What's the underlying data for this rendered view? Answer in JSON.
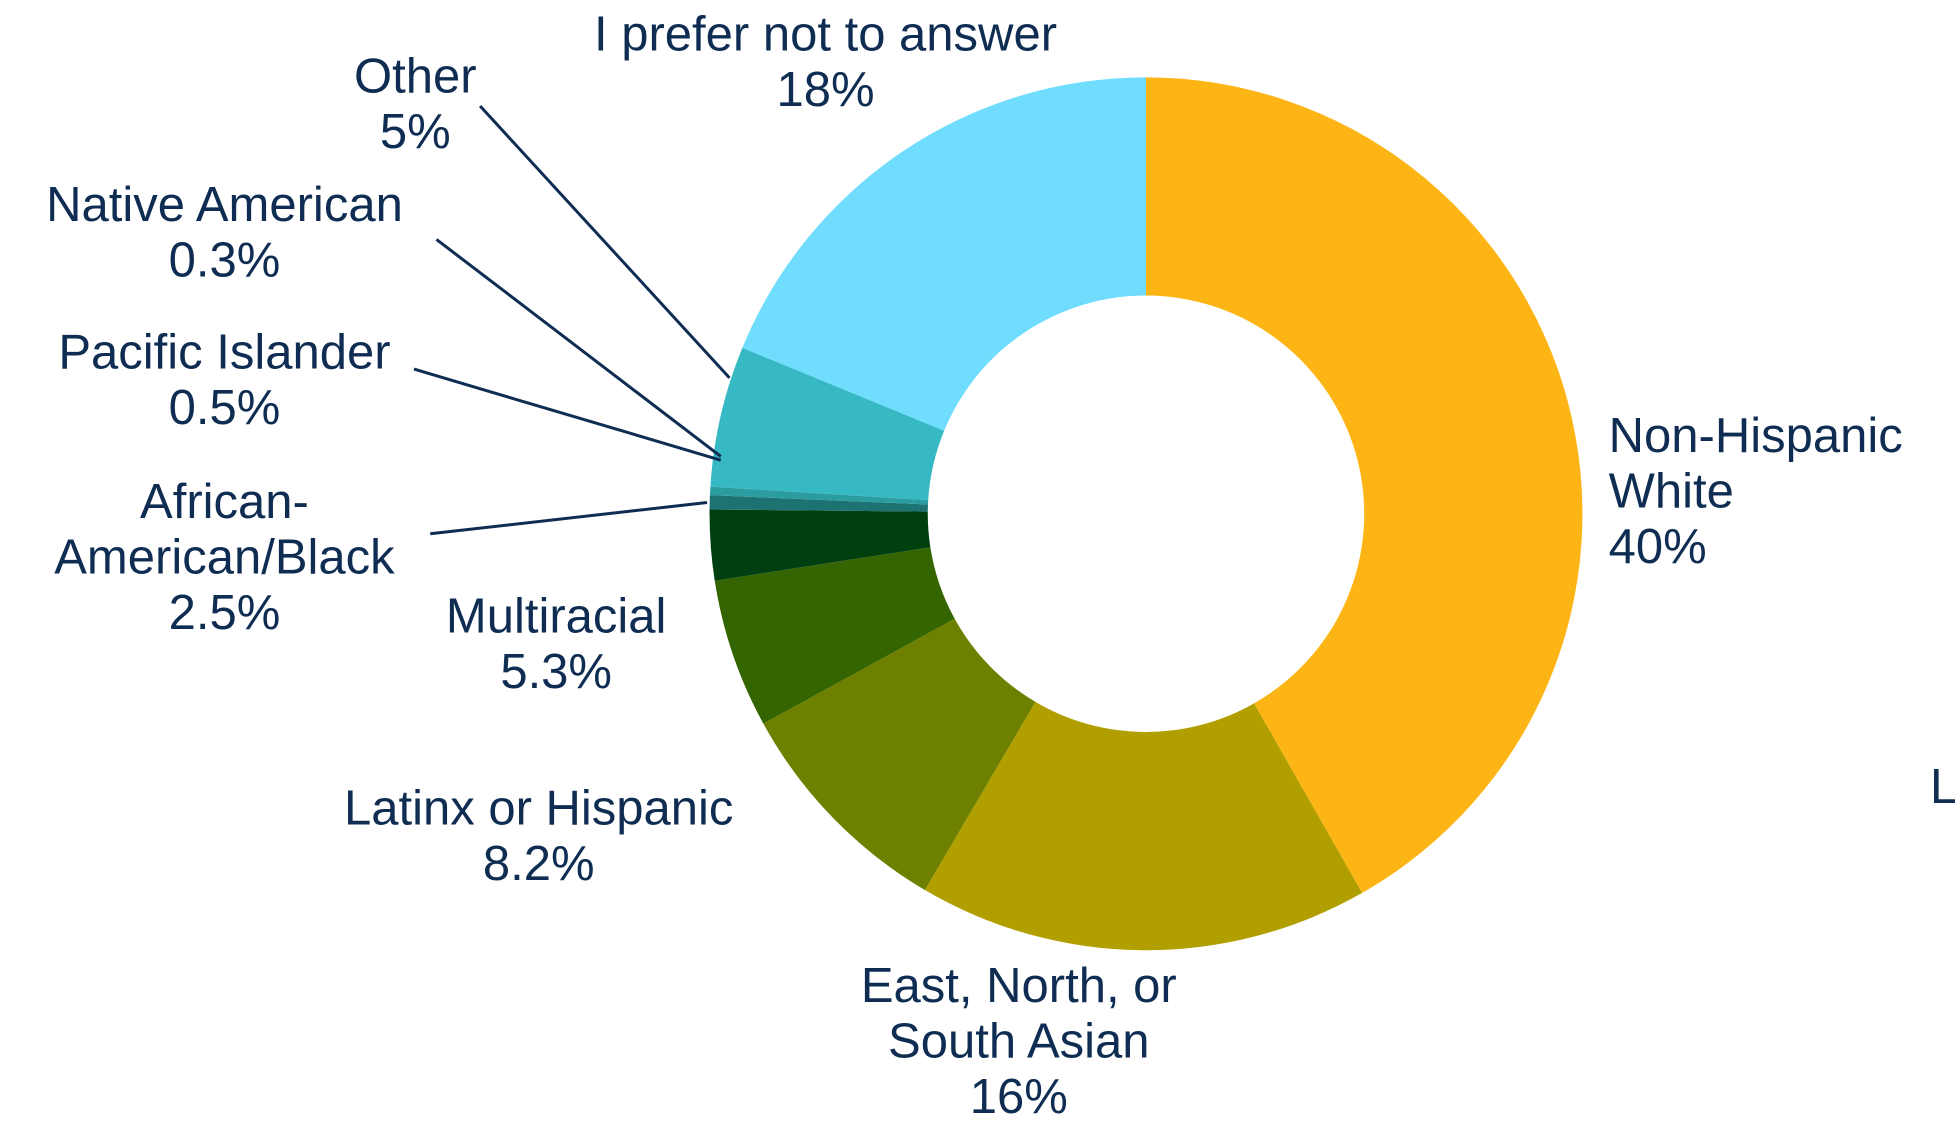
{
  "chart_data": {
    "type": "donut",
    "categories": [
      [
        "Non-Hispanic",
        "White"
      ],
      [
        "East, North, or",
        "South Asian"
      ],
      [
        "Latinx or Hispanic"
      ],
      [
        "Multiracial"
      ],
      [
        "African-",
        "American/Black"
      ],
      [
        "Pacific Islander"
      ],
      [
        "Native American"
      ],
      [
        "Other"
      ],
      [
        "I prefer not to answer"
      ]
    ],
    "values": [
      40,
      16,
      8.2,
      5.3,
      2.5,
      0.5,
      0.3,
      5,
      18
    ],
    "value_labels": [
      "40%",
      "16%",
      "8.2%",
      "5.3%",
      "2.5%",
      "0.5%",
      "0.3%",
      "5%",
      "18%"
    ],
    "colors": [
      "#fdb515",
      "#b19f00",
      "#6e8000",
      "#356500",
      "#003f10",
      "#1d7272",
      "#2b9da0",
      "#36b9c3",
      "#70ddff"
    ],
    "clipped_text": "L"
  }
}
